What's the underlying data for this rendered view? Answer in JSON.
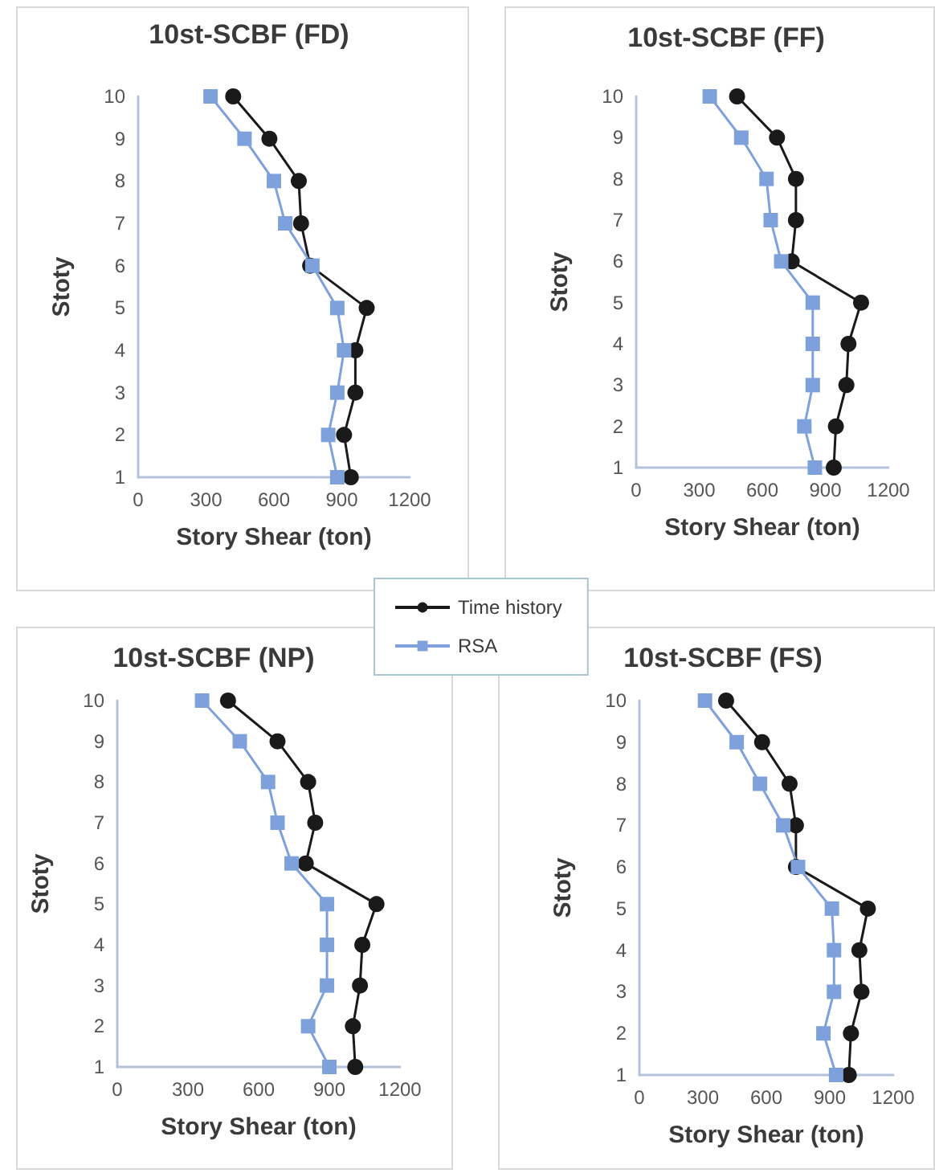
{
  "chart_data": [
    {
      "type": "line",
      "title": "10st-SCBF (FD)",
      "xlabel": "Story Shear (ton)",
      "ylabel": "Stoty",
      "xlim": [
        0,
        1200
      ],
      "xticks": [
        0,
        300,
        600,
        900,
        1200
      ],
      "ylim": [
        1,
        10
      ],
      "yticks": [
        1,
        2,
        3,
        4,
        5,
        6,
        7,
        8,
        9,
        10
      ],
      "grid": false,
      "legend": "bottom right",
      "line_style": "solid",
      "series": [
        {
          "name": "Time history",
          "color": "#1a1a1a",
          "marker": "circle",
          "x": [
            940,
            910,
            960,
            960,
            1010,
            760,
            720,
            710,
            580,
            420
          ],
          "values": [
            1,
            2,
            3,
            4,
            5,
            6,
            7,
            8,
            9,
            10
          ]
        },
        {
          "name": "RSA",
          "color": "#7ea1dc",
          "marker": "square",
          "x": [
            880,
            840,
            880,
            910,
            880,
            770,
            650,
            600,
            470,
            320
          ],
          "values": [
            1,
            2,
            3,
            4,
            5,
            6,
            7,
            8,
            9,
            10
          ]
        }
      ]
    },
    {
      "type": "line",
      "title": "10st-SCBF (FF)",
      "xlabel": "Story Shear (ton)",
      "ylabel": "Stoty",
      "xlim": [
        0,
        1200
      ],
      "xticks": [
        0,
        300,
        600,
        900,
        1200
      ],
      "ylim": [
        1,
        10
      ],
      "yticks": [
        1,
        2,
        3,
        4,
        5,
        6,
        7,
        8,
        9,
        10
      ],
      "grid": false,
      "line_style": "solid",
      "series": [
        {
          "color": "#1a1a1a",
          "marker": "circle",
          "x": [
            940,
            950,
            1000,
            1010,
            1070,
            740,
            760,
            760,
            670,
            480
          ],
          "values": [
            1,
            2,
            3,
            4,
            5,
            6,
            7,
            8,
            9,
            10
          ]
        },
        {
          "color": "#7ea1dc",
          "marker": "square",
          "x": [
            850,
            800,
            840,
            840,
            840,
            690,
            640,
            620,
            500,
            350
          ],
          "values": [
            1,
            2,
            3,
            4,
            5,
            6,
            7,
            8,
            9,
            10
          ]
        }
      ]
    },
    {
      "type": "line",
      "title": "10st-SCBF (NP)",
      "xlabel": "Story Shear (ton)",
      "ylabel": "Stoty",
      "xlim": [
        0,
        1200
      ],
      "xticks": [
        0,
        300,
        600,
        900,
        1200
      ],
      "ylim": [
        1,
        10
      ],
      "yticks": [
        1,
        2,
        3,
        4,
        5,
        6,
        7,
        8,
        9,
        10
      ],
      "grid": false,
      "line_style": "solid",
      "series": [
        {
          "color": "#1a1a1a",
          "marker": "circle",
          "x": [
            1010,
            1000,
            1030,
            1040,
            1100,
            800,
            840,
            810,
            680,
            470
          ],
          "values": [
            1,
            2,
            3,
            4,
            5,
            6,
            7,
            8,
            9,
            10
          ]
        },
        {
          "color": "#7ea1dc",
          "marker": "square",
          "x": [
            900,
            810,
            890,
            890,
            890,
            740,
            680,
            640,
            520,
            360
          ],
          "values": [
            1,
            2,
            3,
            4,
            5,
            6,
            7,
            8,
            9,
            10
          ]
        }
      ]
    },
    {
      "type": "line",
      "title": "10st-SCBF (FS)",
      "xlabel": "Story Shear (ton)",
      "ylabel": "Stoty",
      "xlim": [
        0,
        1200
      ],
      "xticks": [
        0,
        300,
        600,
        900,
        1200
      ],
      "ylim": [
        1,
        10
      ],
      "yticks": [
        1,
        2,
        3,
        4,
        5,
        6,
        7,
        8,
        9,
        10
      ],
      "grid": false,
      "line_style": "solid",
      "series": [
        {
          "color": "#1a1a1a",
          "marker": "circle",
          "x": [
            990,
            1000,
            1050,
            1040,
            1080,
            740,
            740,
            710,
            580,
            410
          ],
          "values": [
            1,
            2,
            3,
            4,
            5,
            6,
            7,
            8,
            9,
            10
          ]
        },
        {
          "color": "#7ea1dc",
          "marker": "square",
          "x": [
            930,
            870,
            920,
            920,
            910,
            750,
            680,
            570,
            460,
            310
          ],
          "values": [
            1,
            2,
            3,
            4,
            5,
            6,
            7,
            8,
            9,
            10
          ]
        }
      ]
    }
  ]
}
